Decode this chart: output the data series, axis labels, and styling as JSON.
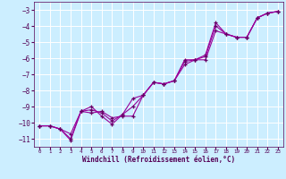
{
  "xlabel": "Windchill (Refroidissement éolien,°C)",
  "ylabel": "",
  "bg_color": "#cceeff",
  "grid_color": "#ffffff",
  "line_color": "#990099",
  "marker_color": "#660066",
  "xlim": [
    -0.5,
    23.5
  ],
  "ylim": [
    -11.5,
    -2.5
  ],
  "xticks": [
    0,
    1,
    2,
    3,
    4,
    5,
    6,
    7,
    8,
    9,
    10,
    11,
    12,
    13,
    14,
    15,
    16,
    17,
    18,
    19,
    20,
    21,
    22,
    23
  ],
  "yticks": [
    -11,
    -10,
    -9,
    -8,
    -7,
    -6,
    -5,
    -4,
    -3
  ],
  "lines": [
    {
      "x": [
        0,
        1,
        2,
        3,
        4,
        5,
        6,
        7,
        8,
        9,
        10,
        11,
        12,
        13,
        14,
        15,
        16,
        17,
        18,
        19,
        20,
        21,
        22,
        23
      ],
      "y": [
        -10.2,
        -10.2,
        -10.4,
        -11.1,
        -9.3,
        -9.0,
        -9.6,
        -10.1,
        -9.5,
        -8.5,
        -8.3,
        -7.5,
        -7.6,
        -7.4,
        -6.1,
        -6.1,
        -5.8,
        -3.8,
        -4.5,
        -4.7,
        -4.7,
        -3.5,
        -3.2,
        -3.1
      ]
    },
    {
      "x": [
        0,
        1,
        2,
        3,
        4,
        5,
        6,
        7,
        8,
        9,
        10,
        11,
        12,
        13,
        14,
        15,
        16,
        17,
        18,
        19,
        20,
        21,
        22,
        23
      ],
      "y": [
        -10.2,
        -10.2,
        -10.4,
        -10.7,
        -9.3,
        -9.4,
        -9.3,
        -9.7,
        -9.6,
        -9.6,
        -8.3,
        -7.5,
        -7.6,
        -7.4,
        -6.4,
        -6.1,
        -6.1,
        -4.3,
        -4.5,
        -4.7,
        -4.7,
        -3.5,
        -3.2,
        -3.1
      ]
    },
    {
      "x": [
        0,
        1,
        2,
        3,
        4,
        5,
        6,
        7,
        8,
        9,
        10,
        11,
        12,
        13,
        14,
        15,
        16,
        17,
        18,
        19,
        20,
        21,
        22,
        23
      ],
      "y": [
        -10.2,
        -10.2,
        -10.4,
        -11.0,
        -9.3,
        -9.2,
        -9.4,
        -9.9,
        -9.5,
        -9.0,
        -8.3,
        -7.5,
        -7.6,
        -7.4,
        -6.2,
        -6.1,
        -5.9,
        -4.0,
        -4.5,
        -4.7,
        -4.7,
        -3.5,
        -3.2,
        -3.1
      ]
    }
  ]
}
